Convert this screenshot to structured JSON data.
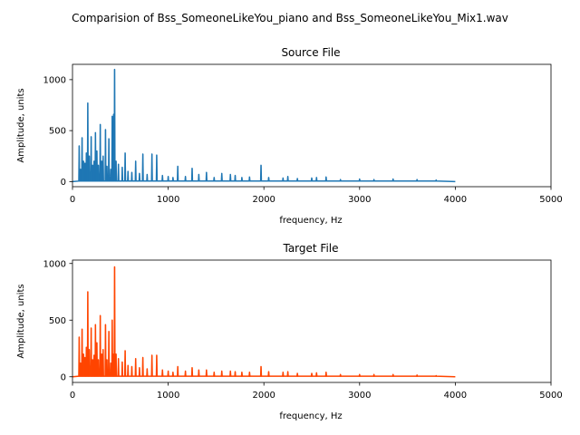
{
  "suptitle": "Comparision of Bss_SomeoneLikeYou_piano and Bss_SomeoneLikeYou_Mix1.wav",
  "chart_data": [
    {
      "type": "line",
      "title": "Source File",
      "xlabel": "frequency, Hz",
      "ylabel": "Amplitude, units",
      "xlim": [
        0,
        5000
      ],
      "ylim": [
        -50,
        1150
      ],
      "xticks": [
        0,
        1000,
        2000,
        3000,
        4000,
        5000
      ],
      "yticks": [
        0,
        500,
        1000
      ],
      "color": "#1f77b4",
      "peaks": [
        {
          "x": 70,
          "y": 350
        },
        {
          "x": 85,
          "y": 120
        },
        {
          "x": 100,
          "y": 430
        },
        {
          "x": 115,
          "y": 200
        },
        {
          "x": 130,
          "y": 180
        },
        {
          "x": 145,
          "y": 280
        },
        {
          "x": 160,
          "y": 770
        },
        {
          "x": 175,
          "y": 250
        },
        {
          "x": 195,
          "y": 440
        },
        {
          "x": 210,
          "y": 160
        },
        {
          "x": 225,
          "y": 200
        },
        {
          "x": 240,
          "y": 480
        },
        {
          "x": 255,
          "y": 300
        },
        {
          "x": 270,
          "y": 160
        },
        {
          "x": 290,
          "y": 560
        },
        {
          "x": 305,
          "y": 200
        },
        {
          "x": 320,
          "y": 250
        },
        {
          "x": 345,
          "y": 510
        },
        {
          "x": 360,
          "y": 150
        },
        {
          "x": 380,
          "y": 420
        },
        {
          "x": 400,
          "y": 120
        },
        {
          "x": 415,
          "y": 640
        },
        {
          "x": 430,
          "y": 660
        },
        {
          "x": 440,
          "y": 1100
        },
        {
          "x": 455,
          "y": 200
        },
        {
          "x": 480,
          "y": 170
        },
        {
          "x": 520,
          "y": 140
        },
        {
          "x": 550,
          "y": 280
        },
        {
          "x": 580,
          "y": 100
        },
        {
          "x": 620,
          "y": 90
        },
        {
          "x": 660,
          "y": 200
        },
        {
          "x": 700,
          "y": 80
        },
        {
          "x": 735,
          "y": 270
        },
        {
          "x": 780,
          "y": 70
        },
        {
          "x": 830,
          "y": 270
        },
        {
          "x": 880,
          "y": 260
        },
        {
          "x": 940,
          "y": 60
        },
        {
          "x": 1000,
          "y": 50
        },
        {
          "x": 1050,
          "y": 40
        },
        {
          "x": 1100,
          "y": 150
        },
        {
          "x": 1180,
          "y": 50
        },
        {
          "x": 1250,
          "y": 130
        },
        {
          "x": 1320,
          "y": 70
        },
        {
          "x": 1400,
          "y": 90
        },
        {
          "x": 1480,
          "y": 40
        },
        {
          "x": 1560,
          "y": 80
        },
        {
          "x": 1650,
          "y": 70
        },
        {
          "x": 1700,
          "y": 60
        },
        {
          "x": 1770,
          "y": 40
        },
        {
          "x": 1850,
          "y": 45
        },
        {
          "x": 1970,
          "y": 160
        },
        {
          "x": 2050,
          "y": 40
        },
        {
          "x": 2200,
          "y": 35
        },
        {
          "x": 2250,
          "y": 50
        },
        {
          "x": 2350,
          "y": 30
        },
        {
          "x": 2500,
          "y": 35
        },
        {
          "x": 2550,
          "y": 40
        },
        {
          "x": 2650,
          "y": 45
        },
        {
          "x": 2800,
          "y": 20
        },
        {
          "x": 3000,
          "y": 25
        },
        {
          "x": 3150,
          "y": 20
        },
        {
          "x": 3350,
          "y": 25
        },
        {
          "x": 3600,
          "y": 20
        },
        {
          "x": 3800,
          "y": 15
        }
      ]
    },
    {
      "type": "line",
      "title": "Target File",
      "xlabel": "frequency, Hz",
      "ylabel": "Amplitude, units",
      "xlim": [
        0,
        5000
      ],
      "ylim": [
        -50,
        1030
      ],
      "xticks": [
        0,
        1000,
        2000,
        3000,
        4000,
        5000
      ],
      "yticks": [
        0,
        500,
        1000
      ],
      "color": "#ff4500",
      "peaks": [
        {
          "x": 70,
          "y": 350
        },
        {
          "x": 85,
          "y": 120
        },
        {
          "x": 100,
          "y": 420
        },
        {
          "x": 115,
          "y": 200
        },
        {
          "x": 130,
          "y": 170
        },
        {
          "x": 145,
          "y": 260
        },
        {
          "x": 160,
          "y": 750
        },
        {
          "x": 175,
          "y": 240
        },
        {
          "x": 195,
          "y": 430
        },
        {
          "x": 210,
          "y": 150
        },
        {
          "x": 225,
          "y": 190
        },
        {
          "x": 240,
          "y": 460
        },
        {
          "x": 255,
          "y": 300
        },
        {
          "x": 270,
          "y": 150
        },
        {
          "x": 290,
          "y": 540
        },
        {
          "x": 305,
          "y": 200
        },
        {
          "x": 320,
          "y": 240
        },
        {
          "x": 345,
          "y": 460
        },
        {
          "x": 360,
          "y": 150
        },
        {
          "x": 380,
          "y": 400
        },
        {
          "x": 400,
          "y": 120
        },
        {
          "x": 415,
          "y": 500
        },
        {
          "x": 430,
          "y": 200
        },
        {
          "x": 440,
          "y": 970
        },
        {
          "x": 455,
          "y": 200
        },
        {
          "x": 480,
          "y": 160
        },
        {
          "x": 520,
          "y": 130
        },
        {
          "x": 550,
          "y": 230
        },
        {
          "x": 580,
          "y": 100
        },
        {
          "x": 620,
          "y": 90
        },
        {
          "x": 660,
          "y": 160
        },
        {
          "x": 700,
          "y": 80
        },
        {
          "x": 735,
          "y": 170
        },
        {
          "x": 780,
          "y": 70
        },
        {
          "x": 830,
          "y": 190
        },
        {
          "x": 880,
          "y": 190
        },
        {
          "x": 940,
          "y": 60
        },
        {
          "x": 1000,
          "y": 50
        },
        {
          "x": 1050,
          "y": 40
        },
        {
          "x": 1100,
          "y": 90
        },
        {
          "x": 1180,
          "y": 50
        },
        {
          "x": 1250,
          "y": 80
        },
        {
          "x": 1320,
          "y": 60
        },
        {
          "x": 1400,
          "y": 60
        },
        {
          "x": 1480,
          "y": 40
        },
        {
          "x": 1560,
          "y": 50
        },
        {
          "x": 1650,
          "y": 50
        },
        {
          "x": 1700,
          "y": 45
        },
        {
          "x": 1770,
          "y": 40
        },
        {
          "x": 1850,
          "y": 40
        },
        {
          "x": 1970,
          "y": 90
        },
        {
          "x": 2050,
          "y": 45
        },
        {
          "x": 2200,
          "y": 40
        },
        {
          "x": 2250,
          "y": 45
        },
        {
          "x": 2350,
          "y": 30
        },
        {
          "x": 2500,
          "y": 30
        },
        {
          "x": 2550,
          "y": 35
        },
        {
          "x": 2650,
          "y": 40
        },
        {
          "x": 2800,
          "y": 20
        },
        {
          "x": 3000,
          "y": 20
        },
        {
          "x": 3150,
          "y": 20
        },
        {
          "x": 3350,
          "y": 20
        },
        {
          "x": 3600,
          "y": 15
        },
        {
          "x": 3800,
          "y": 10
        }
      ]
    }
  ]
}
